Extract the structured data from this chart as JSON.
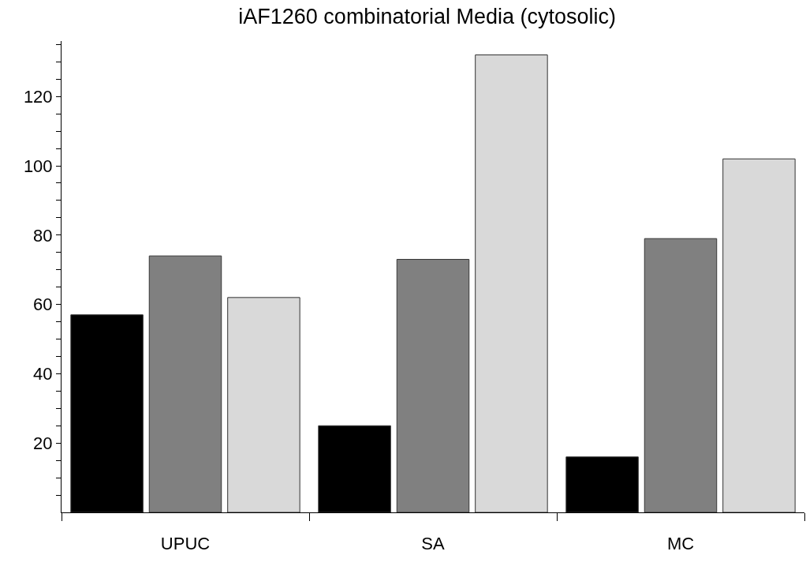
{
  "chart_data": {
    "type": "bar",
    "title": "iAF1260 combinatorial Media (cytosolic)",
    "categories": [
      "UPUC",
      "SA",
      "MC"
    ],
    "series": [
      {
        "color": "#000000",
        "values": [
          57,
          25,
          16
        ]
      },
      {
        "color": "#808080",
        "values": [
          74,
          73,
          79
        ]
      },
      {
        "color": "#d9d9d9",
        "values": [
          62,
          132,
          102
        ]
      }
    ],
    "ylim": [
      0,
      136
    ],
    "yticks": [
      {
        "value": 5,
        "label": null
      },
      {
        "value": 10,
        "label": null
      },
      {
        "value": 15,
        "label": null
      },
      20,
      {
        "value": 25,
        "label": null
      },
      {
        "value": 30,
        "label": null
      },
      {
        "value": 35,
        "label": null
      },
      40,
      {
        "value": 45,
        "label": null
      },
      {
        "value": 50,
        "label": null
      },
      {
        "value": 55,
        "label": null
      },
      60,
      {
        "value": 65,
        "label": null
      },
      {
        "value": 70,
        "label": null
      },
      {
        "value": 75,
        "label": null
      },
      80,
      {
        "value": 85,
        "label": null
      },
      {
        "value": 90,
        "label": null
      },
      {
        "value": 95,
        "label": null
      },
      100,
      {
        "value": 105,
        "label": null
      },
      {
        "value": 110,
        "label": null
      },
      {
        "value": 115,
        "label": null
      },
      120,
      {
        "value": 125,
        "label": null
      },
      {
        "value": 130,
        "label": null
      },
      {
        "value": 135,
        "label": null
      }
    ],
    "grid": false
  }
}
